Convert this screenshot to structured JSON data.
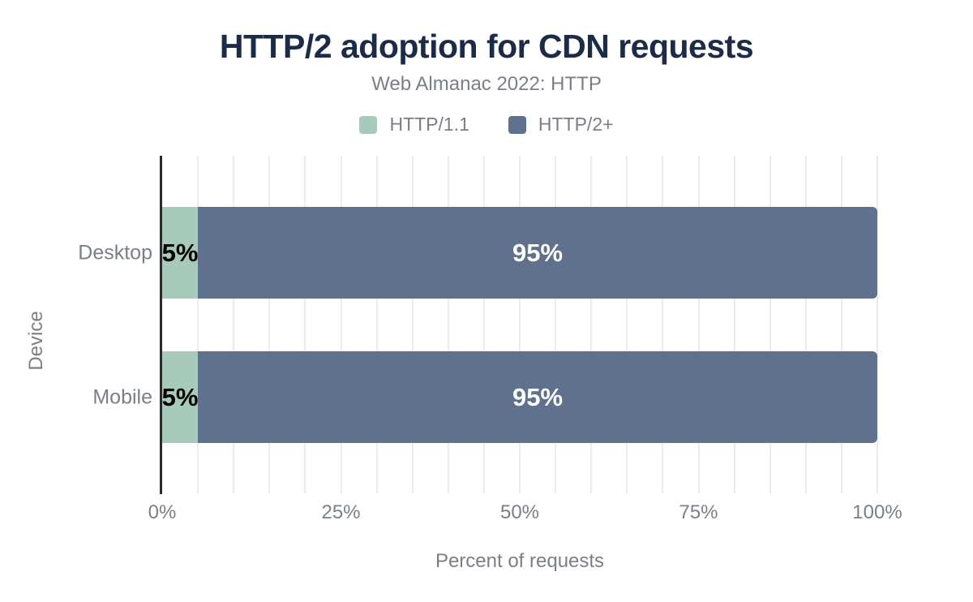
{
  "colors": {
    "background": "#ffffff",
    "title_text": "#1c2b47",
    "axis_text": "#7a7f85",
    "axis_line": "#2a2a2a",
    "gridline": "#ededed",
    "series_http11": "#a8cabb",
    "series_http2": "#5f718c"
  },
  "chart_data": {
    "type": "bar",
    "orientation": "horizontal",
    "stacked": true,
    "title": "HTTP/2 adoption for CDN requests",
    "subtitle": "Web Almanac 2022: HTTP",
    "xlabel": "Percent of requests",
    "ylabel": "Device",
    "categories": [
      "Desktop",
      "Mobile"
    ],
    "series": [
      {
        "name": "HTTP/1.1",
        "color": "#a8cabb",
        "values": [
          5,
          5
        ],
        "value_labels": [
          "5%",
          "5%"
        ],
        "value_label_color": "#000000"
      },
      {
        "name": "HTTP/2+",
        "color": "#5f718c",
        "values": [
          95,
          95
        ],
        "value_labels": [
          "95%",
          "95%"
        ],
        "value_label_color": "#ffffff"
      }
    ],
    "xlim": [
      0,
      100
    ],
    "xticks": [
      {
        "value": 0,
        "label": "0%"
      },
      {
        "value": 25,
        "label": "25%"
      },
      {
        "value": 50,
        "label": "50%"
      },
      {
        "value": 75,
        "label": "75%"
      },
      {
        "value": 100,
        "label": "100%"
      }
    ],
    "grid": {
      "show": true,
      "interval_percent": 5,
      "color": "#ededed",
      "direction": "vertical"
    },
    "legend_position": "top"
  }
}
